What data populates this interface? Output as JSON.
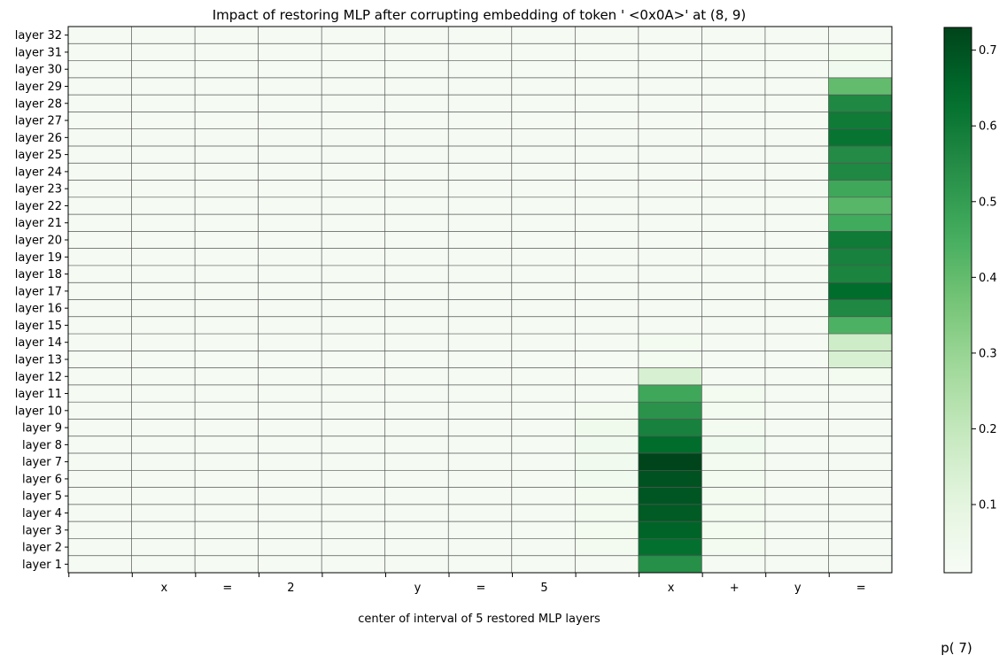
{
  "chart_data": {
    "type": "heatmap",
    "title": "Impact of restoring MLP after corrupting embedding of token ' <0x0A>' at (8, 9)",
    "xlabel": "center of interval of 5 restored MLP layers",
    "colorbar_label": "p( 7)",
    "colormap": "Greens",
    "x_tick_labels": [
      "",
      "x",
      "=",
      "2",
      "",
      "y",
      "=",
      "5",
      "",
      "x",
      "+",
      "y",
      "="
    ],
    "y_tick_labels": [
      "layer 32",
      "layer 31",
      "layer 30",
      "layer 29",
      "layer 28",
      "layer 27",
      "layer 26",
      "layer 25",
      "layer 24",
      "layer 23",
      "layer 22",
      "layer 21",
      "layer 20",
      "layer 19",
      "layer 18",
      "layer 17",
      "layer 16",
      "layer 15",
      "layer 14",
      "layer 13",
      "layer 12",
      "layer 11",
      "layer 10",
      "layer 9",
      "layer 8",
      "layer 7",
      "layer 6",
      "layer 5",
      "layer 4",
      "layer 3",
      "layer 2",
      "layer 1"
    ],
    "colorbar_range": [
      0.01,
      0.73
    ],
    "colorbar_ticks": [
      0.1,
      0.2,
      0.3,
      0.4,
      0.5,
      0.6,
      0.7
    ],
    "grid": true,
    "values": [
      [
        0.02,
        0.02,
        0.02,
        0.02,
        0.02,
        0.02,
        0.02,
        0.02,
        0.02,
        0.02,
        0.02,
        0.02,
        0.02
      ],
      [
        0.02,
        0.02,
        0.02,
        0.02,
        0.02,
        0.02,
        0.02,
        0.02,
        0.02,
        0.02,
        0.02,
        0.02,
        0.03
      ],
      [
        0.02,
        0.02,
        0.02,
        0.02,
        0.02,
        0.02,
        0.02,
        0.02,
        0.02,
        0.02,
        0.02,
        0.02,
        0.04
      ],
      [
        0.02,
        0.02,
        0.02,
        0.02,
        0.02,
        0.02,
        0.02,
        0.02,
        0.02,
        0.02,
        0.02,
        0.02,
        0.4
      ],
      [
        0.02,
        0.02,
        0.02,
        0.02,
        0.02,
        0.02,
        0.02,
        0.02,
        0.02,
        0.02,
        0.02,
        0.02,
        0.56
      ],
      [
        0.02,
        0.02,
        0.02,
        0.02,
        0.02,
        0.02,
        0.02,
        0.02,
        0.02,
        0.02,
        0.02,
        0.02,
        0.6
      ],
      [
        0.02,
        0.02,
        0.02,
        0.02,
        0.02,
        0.02,
        0.02,
        0.02,
        0.02,
        0.02,
        0.02,
        0.02,
        0.62
      ],
      [
        0.02,
        0.02,
        0.02,
        0.02,
        0.02,
        0.02,
        0.02,
        0.02,
        0.02,
        0.02,
        0.02,
        0.02,
        0.55
      ],
      [
        0.02,
        0.02,
        0.02,
        0.02,
        0.02,
        0.02,
        0.02,
        0.02,
        0.02,
        0.02,
        0.02,
        0.02,
        0.56
      ],
      [
        0.02,
        0.02,
        0.02,
        0.02,
        0.02,
        0.02,
        0.02,
        0.02,
        0.02,
        0.02,
        0.02,
        0.02,
        0.47
      ],
      [
        0.02,
        0.02,
        0.02,
        0.02,
        0.02,
        0.02,
        0.02,
        0.02,
        0.02,
        0.02,
        0.02,
        0.02,
        0.42
      ],
      [
        0.02,
        0.02,
        0.02,
        0.02,
        0.02,
        0.02,
        0.02,
        0.02,
        0.02,
        0.02,
        0.02,
        0.02,
        0.46
      ],
      [
        0.02,
        0.02,
        0.02,
        0.02,
        0.02,
        0.02,
        0.02,
        0.02,
        0.02,
        0.02,
        0.02,
        0.02,
        0.6
      ],
      [
        0.02,
        0.02,
        0.02,
        0.02,
        0.02,
        0.02,
        0.02,
        0.02,
        0.02,
        0.02,
        0.02,
        0.02,
        0.58
      ],
      [
        0.02,
        0.02,
        0.02,
        0.02,
        0.02,
        0.02,
        0.02,
        0.02,
        0.02,
        0.02,
        0.02,
        0.02,
        0.57
      ],
      [
        0.02,
        0.02,
        0.02,
        0.02,
        0.02,
        0.02,
        0.02,
        0.02,
        0.02,
        0.02,
        0.02,
        0.02,
        0.64
      ],
      [
        0.02,
        0.02,
        0.02,
        0.02,
        0.02,
        0.02,
        0.02,
        0.02,
        0.02,
        0.02,
        0.02,
        0.02,
        0.56
      ],
      [
        0.02,
        0.02,
        0.02,
        0.02,
        0.02,
        0.02,
        0.02,
        0.02,
        0.02,
        0.02,
        0.02,
        0.02,
        0.44
      ],
      [
        0.02,
        0.02,
        0.02,
        0.02,
        0.02,
        0.02,
        0.02,
        0.02,
        0.02,
        0.03,
        0.02,
        0.02,
        0.17
      ],
      [
        0.02,
        0.02,
        0.02,
        0.02,
        0.02,
        0.02,
        0.02,
        0.02,
        0.02,
        0.03,
        0.02,
        0.02,
        0.14
      ],
      [
        0.02,
        0.02,
        0.02,
        0.02,
        0.02,
        0.02,
        0.02,
        0.02,
        0.02,
        0.14,
        0.02,
        0.02,
        0.03
      ],
      [
        0.02,
        0.02,
        0.02,
        0.02,
        0.02,
        0.02,
        0.02,
        0.02,
        0.02,
        0.47,
        0.03,
        0.02,
        0.02
      ],
      [
        0.02,
        0.02,
        0.02,
        0.02,
        0.02,
        0.02,
        0.02,
        0.02,
        0.03,
        0.53,
        0.03,
        0.02,
        0.02
      ],
      [
        0.02,
        0.02,
        0.02,
        0.02,
        0.02,
        0.02,
        0.02,
        0.02,
        0.05,
        0.58,
        0.03,
        0.02,
        0.02
      ],
      [
        0.02,
        0.02,
        0.02,
        0.02,
        0.02,
        0.02,
        0.02,
        0.02,
        0.04,
        0.64,
        0.04,
        0.02,
        0.02
      ],
      [
        0.02,
        0.02,
        0.02,
        0.02,
        0.02,
        0.02,
        0.02,
        0.02,
        0.04,
        0.73,
        0.03,
        0.02,
        0.02
      ],
      [
        0.02,
        0.02,
        0.02,
        0.02,
        0.02,
        0.02,
        0.02,
        0.02,
        0.04,
        0.7,
        0.03,
        0.02,
        0.02
      ],
      [
        0.02,
        0.02,
        0.02,
        0.02,
        0.02,
        0.02,
        0.02,
        0.02,
        0.03,
        0.69,
        0.03,
        0.02,
        0.02
      ],
      [
        0.02,
        0.02,
        0.02,
        0.02,
        0.02,
        0.02,
        0.02,
        0.02,
        0.03,
        0.68,
        0.03,
        0.02,
        0.02
      ],
      [
        0.02,
        0.02,
        0.02,
        0.02,
        0.02,
        0.02,
        0.02,
        0.02,
        0.03,
        0.66,
        0.03,
        0.02,
        0.02
      ],
      [
        0.02,
        0.02,
        0.02,
        0.02,
        0.02,
        0.02,
        0.02,
        0.02,
        0.03,
        0.63,
        0.03,
        0.02,
        0.02
      ],
      [
        0.02,
        0.02,
        0.02,
        0.02,
        0.02,
        0.02,
        0.02,
        0.02,
        0.02,
        0.54,
        0.02,
        0.02,
        0.02
      ]
    ]
  }
}
